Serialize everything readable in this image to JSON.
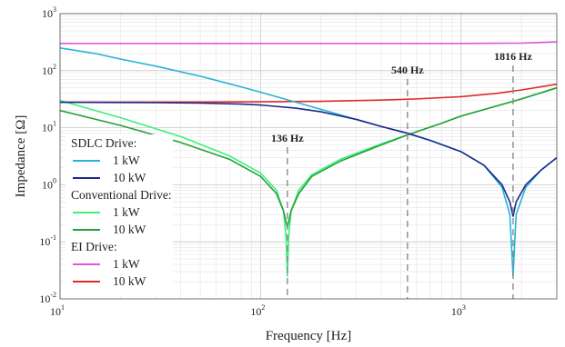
{
  "chart_data": {
    "type": "line",
    "xlabel": "Frequency [Hz]",
    "ylabel": "Impedance [Ω]",
    "x_scale": "log",
    "y_scale": "log",
    "xlim": [
      10,
      3000
    ],
    "ylim": [
      0.01,
      1000
    ],
    "x_ticks": [
      {
        "value": 10,
        "base": "10",
        "exp": "1"
      },
      {
        "value": 100,
        "base": "10",
        "exp": "2"
      },
      {
        "value": 1000,
        "base": "10",
        "exp": "3"
      }
    ],
    "y_ticks": [
      {
        "value": 0.01,
        "base": "10",
        "exp": "-2"
      },
      {
        "value": 0.1,
        "base": "10",
        "exp": "-1"
      },
      {
        "value": 1,
        "base": "10",
        "exp": "0"
      },
      {
        "value": 10,
        "base": "10",
        "exp": "1"
      },
      {
        "value": 100,
        "base": "10",
        "exp": "2"
      },
      {
        "value": 1000,
        "base": "10",
        "exp": "3"
      }
    ],
    "grid": true,
    "legend_position": "bottom-left",
    "legend_groups": [
      {
        "title": "SDLC Drive:",
        "entries": [
          {
            "label": "1 kW",
            "color": "#29b3d9"
          },
          {
            "label": "10 kW",
            "color": "#1c2a8c"
          }
        ]
      },
      {
        "title": "Conventional Drive:",
        "entries": [
          {
            "label": "1 kW",
            "color": "#3df07a"
          },
          {
            "label": "10 kW",
            "color": "#24a13a"
          }
        ]
      },
      {
        "title": "EI Drive:",
        "entries": [
          {
            "label": "1 kW",
            "color": "#e055e0"
          },
          {
            "label": "10 kW",
            "color": "#e02a2a"
          }
        ]
      }
    ],
    "series": [
      {
        "color": "#e055e0",
        "points": [
          [
            10,
            300
          ],
          [
            100,
            300
          ],
          [
            500,
            300
          ],
          [
            1000,
            300
          ],
          [
            2000,
            305
          ],
          [
            3000,
            320
          ]
        ]
      },
      {
        "color": "#e02a2a",
        "points": [
          [
            10,
            28
          ],
          [
            50,
            28.2
          ],
          [
            100,
            28.5
          ],
          [
            200,
            29
          ],
          [
            400,
            30.5
          ],
          [
            600,
            32
          ],
          [
            1000,
            35
          ],
          [
            1500,
            40
          ],
          [
            2000,
            46
          ],
          [
            3000,
            58
          ]
        ]
      },
      {
        "color": "#3df07a",
        "points": [
          [
            10,
            30
          ],
          [
            20,
            15
          ],
          [
            40,
            7
          ],
          [
            70,
            3.2
          ],
          [
            100,
            1.6
          ],
          [
            120,
            0.8
          ],
          [
            130,
            0.35
          ],
          [
            134,
            0.12
          ],
          [
            136,
            0.025
          ],
          [
            138,
            0.12
          ],
          [
            142,
            0.35
          ],
          [
            155,
            0.8
          ],
          [
            180,
            1.5
          ],
          [
            250,
            2.8
          ],
          [
            400,
            5.2
          ],
          [
            540,
            7.5
          ],
          [
            800,
            12
          ],
          [
            1000,
            16
          ],
          [
            2000,
            32
          ],
          [
            3000,
            50
          ]
        ]
      },
      {
        "color": "#24a13a",
        "points": [
          [
            10,
            20
          ],
          [
            20,
            11
          ],
          [
            40,
            5.5
          ],
          [
            70,
            2.8
          ],
          [
            100,
            1.4
          ],
          [
            120,
            0.7
          ],
          [
            130,
            0.35
          ],
          [
            136,
            0.18
          ],
          [
            142,
            0.35
          ],
          [
            155,
            0.7
          ],
          [
            180,
            1.4
          ],
          [
            250,
            2.6
          ],
          [
            400,
            5
          ],
          [
            540,
            7.5
          ],
          [
            800,
            12
          ],
          [
            1000,
            16
          ],
          [
            2000,
            32
          ],
          [
            3000,
            50
          ]
        ]
      },
      {
        "color": "#29b3d9",
        "points": [
          [
            10,
            250
          ],
          [
            15,
            200
          ],
          [
            20,
            160
          ],
          [
            30,
            120
          ],
          [
            50,
            80
          ],
          [
            80,
            52
          ],
          [
            100,
            42
          ],
          [
            150,
            28
          ],
          [
            200,
            21
          ],
          [
            300,
            14
          ],
          [
            400,
            10.5
          ],
          [
            540,
            8
          ],
          [
            700,
            6
          ],
          [
            1000,
            3.8
          ],
          [
            1300,
            2.2
          ],
          [
            1600,
            0.9
          ],
          [
            1750,
            0.3
          ],
          [
            1816,
            0.025
          ],
          [
            1880,
            0.3
          ],
          [
            2100,
            0.9
          ],
          [
            2500,
            1.8
          ],
          [
            3000,
            3
          ]
        ]
      },
      {
        "color": "#1c2a8c",
        "points": [
          [
            10,
            28
          ],
          [
            30,
            27.5
          ],
          [
            50,
            27
          ],
          [
            80,
            26
          ],
          [
            100,
            25
          ],
          [
            150,
            22
          ],
          [
            200,
            19
          ],
          [
            300,
            14
          ],
          [
            400,
            10.5
          ],
          [
            540,
            8
          ],
          [
            700,
            6
          ],
          [
            1000,
            3.8
          ],
          [
            1300,
            2.2
          ],
          [
            1600,
            1
          ],
          [
            1750,
            0.5
          ],
          [
            1816,
            0.28
          ],
          [
            1880,
            0.5
          ],
          [
            2100,
            1
          ],
          [
            2500,
            1.8
          ],
          [
            3000,
            3
          ]
        ]
      }
    ],
    "annotations": [
      {
        "text": "136 Hz",
        "x": 136
      },
      {
        "text": "540 Hz",
        "x": 540
      },
      {
        "text": "1816 Hz",
        "x": 1816
      }
    ]
  }
}
